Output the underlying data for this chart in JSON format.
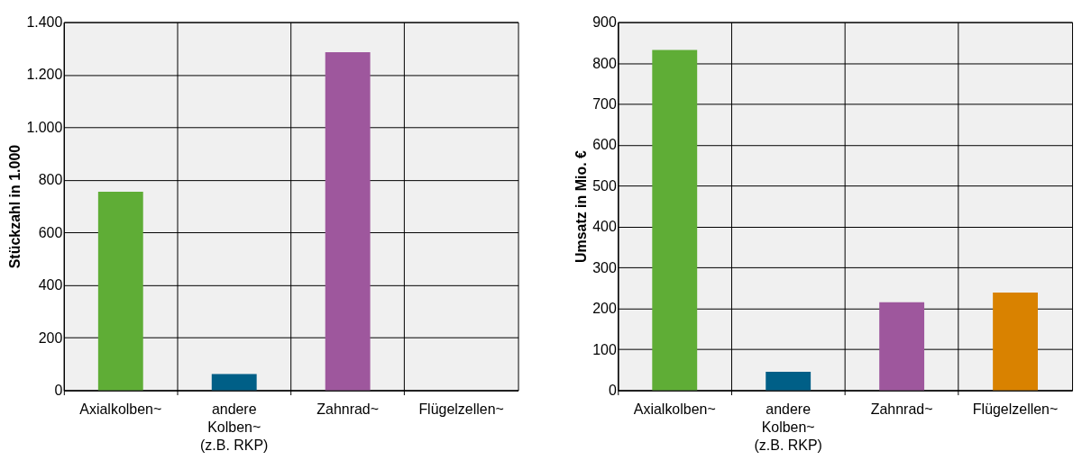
{
  "chart_data": [
    {
      "type": "bar",
      "ylabel": "Stückzahl in 1.000",
      "categories": [
        "Axialkolben~",
        "andere\nKolben~\n(z.B. RKP)",
        "Zahnrad~",
        "Flügelzellen~"
      ],
      "values": [
        755,
        62,
        1286,
        null
      ],
      "colors": [
        "#5fad36",
        "#005f87",
        "#9e579d",
        "#d98200"
      ],
      "ylim": [
        0,
        1400
      ],
      "yticks": [
        0,
        200,
        400,
        600,
        800,
        {
          "value": 1000,
          "label": "1.000"
        },
        {
          "value": 1200,
          "label": "1.200"
        },
        {
          "value": 1400,
          "label": "1.400"
        }
      ],
      "grid": true,
      "legend": false
    },
    {
      "type": "bar",
      "ylabel": "Umsatz in Mio. €",
      "categories": [
        "Axialkolben~",
        "andere\nKolben~\n(z.B. RKP)",
        "Zahnrad~",
        "Flügelzellen~"
      ],
      "values": [
        832,
        45,
        215,
        239
      ],
      "colors": [
        "#5fad36",
        "#005f87",
        "#9e579d",
        "#d98200"
      ],
      "ylim": [
        0,
        900
      ],
      "yticks": [
        0,
        100,
        200,
        300,
        400,
        500,
        600,
        700,
        800,
        900
      ],
      "grid": true,
      "legend": false
    }
  ]
}
